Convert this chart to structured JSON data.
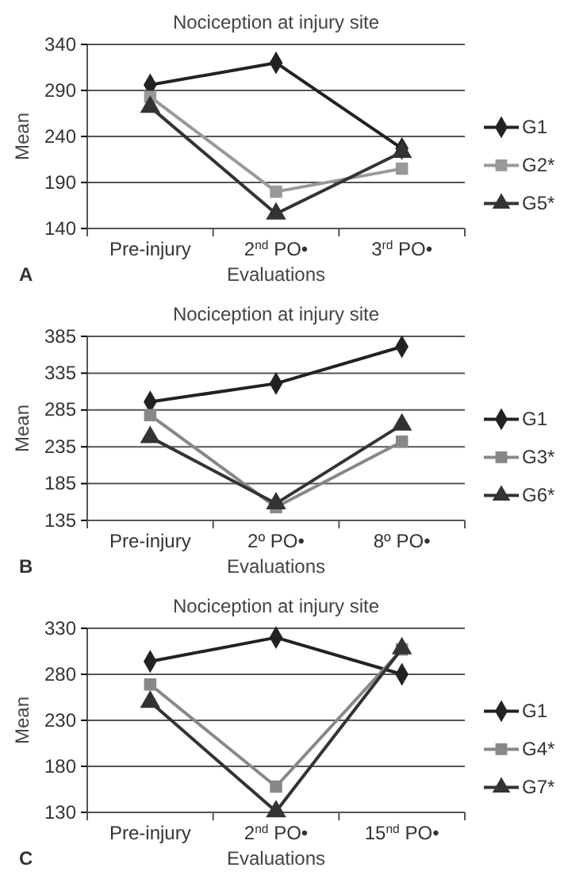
{
  "chart_data": [
    {
      "type": "line",
      "title": "Nociception at injury site",
      "xlabel": "Evaluations",
      "ylabel": "Mean",
      "categories": [
        "Pre-injury",
        "2$^{nd}$ PO•",
        "3$^{rd}$ PO•"
      ],
      "ylim": [
        140,
        340
      ],
      "yticks": [
        140,
        190,
        240,
        290,
        340
      ],
      "grid": "y",
      "legend": "right",
      "annotations": [
        "A"
      ],
      "series": [
        {
          "name": "G1",
          "color": "#222222",
          "marker": "diamond",
          "values": [
            296,
            320,
            227
          ]
        },
        {
          "name": "G2*",
          "color": "#999999",
          "marker": "square",
          "values": [
            283,
            180,
            205
          ]
        },
        {
          "name": "G5*",
          "color": "#333333",
          "marker": "triangle",
          "values": [
            272,
            156,
            223
          ]
        }
      ]
    },
    {
      "type": "line",
      "title": "Nociception at injury site",
      "xlabel": "Evaluations",
      "ylabel": "Mean",
      "categories": [
        "Pre-injury",
        "2º PO•",
        "8º PO•"
      ],
      "ylim": [
        135,
        385
      ],
      "yticks": [
        135,
        185,
        235,
        285,
        335,
        385
      ],
      "grid": "y",
      "legend": "right",
      "annotations": [
        "B"
      ],
      "series": [
        {
          "name": "G1",
          "color": "#222222",
          "marker": "diamond",
          "values": [
            296,
            321,
            371
          ]
        },
        {
          "name": "G3*",
          "color": "#888888",
          "marker": "square",
          "values": [
            278,
            153,
            242
          ]
        },
        {
          "name": "G6*",
          "color": "#333333",
          "marker": "triangle",
          "values": [
            248,
            158,
            265
          ]
        }
      ]
    },
    {
      "type": "line",
      "title": "Nociception at injury site",
      "xlabel": "Evaluations",
      "ylabel": "Mean",
      "categories": [
        "Pre-injury",
        "2$^{nd}$ PO•",
        "15$^{nd}$ PO•"
      ],
      "ylim": [
        130,
        330
      ],
      "yticks": [
        130,
        180,
        230,
        280,
        330
      ],
      "grid": "y",
      "legend": "right",
      "annotations": [
        "C"
      ],
      "series": [
        {
          "name": "G1",
          "color": "#222222",
          "marker": "diamond",
          "values": [
            294,
            320,
            280
          ]
        },
        {
          "name": "G4*",
          "color": "#888888",
          "marker": "square",
          "values": [
            269,
            158,
            307
          ]
        },
        {
          "name": "G7*",
          "color": "#333333",
          "marker": "triangle",
          "values": [
            250,
            131,
            308
          ]
        }
      ]
    }
  ]
}
